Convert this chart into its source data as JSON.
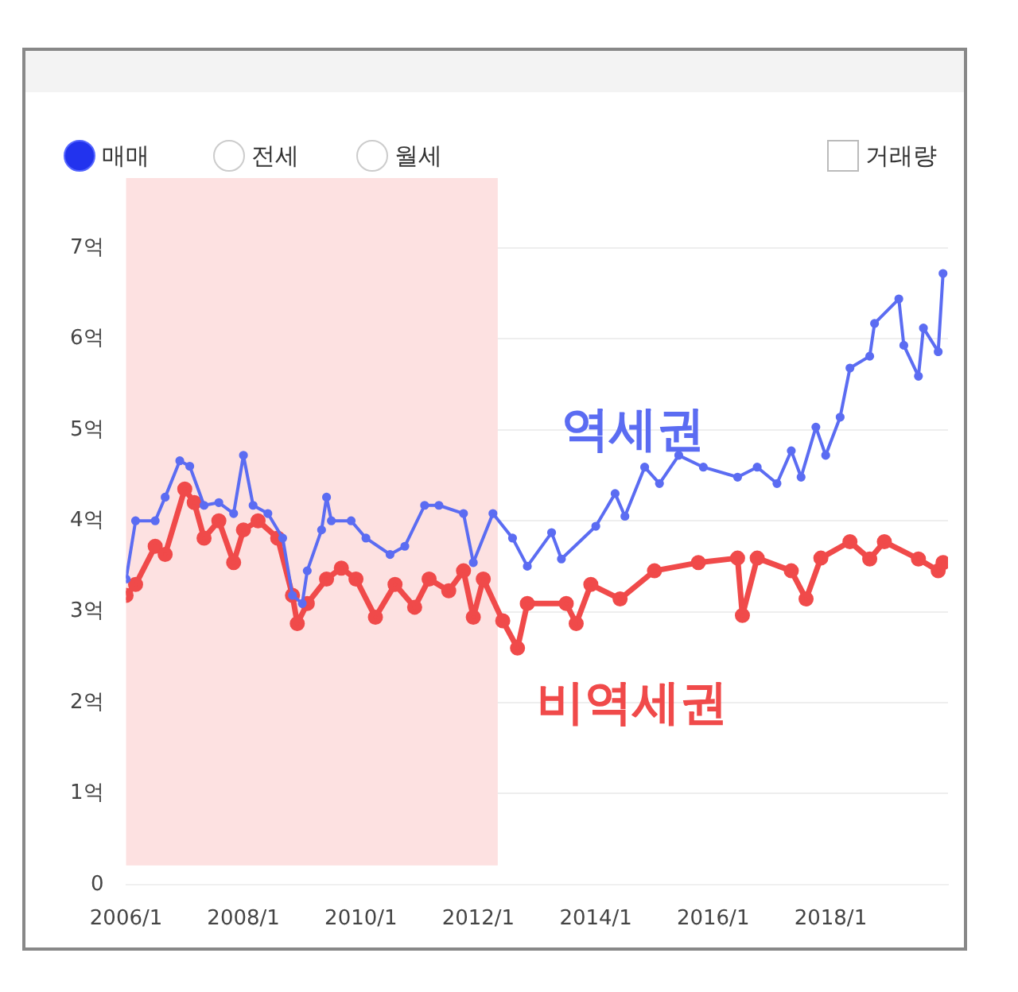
{
  "chart_data": {
    "type": "line",
    "annotations": [
      "매매",
      "전세",
      "월세",
      "거래량"
    ],
    "x": [
      "2006-01",
      "2006-03",
      "2006-07",
      "2006-09",
      "2006-12",
      "2007-02",
      "2007-05",
      "2007-08",
      "2007-11",
      "2008-01",
      "2008-03",
      "2008-06",
      "2008-09",
      "2008-11",
      "2009-01",
      "2009-02",
      "2009-05",
      "2009-06",
      "2009-07",
      "2009-11",
      "2010-02",
      "2010-07",
      "2010-10",
      "2011-02",
      "2011-05",
      "2011-10",
      "2011-12",
      "2012-04",
      "2012-08",
      "2012-11",
      "2013-04",
      "2013-06",
      "2014-01",
      "2014-05",
      "2014-07",
      "2014-11",
      "2015-02",
      "2015-06",
      "2015-11",
      "2016-06",
      "2016-10",
      "2017-02",
      "2017-05",
      "2017-07",
      "2017-10",
      "2017-12",
      "2018-03",
      "2018-05",
      "2018-09",
      "2018-10",
      "2019-03",
      "2019-04",
      "2019-07",
      "2019-08",
      "2019-11",
      "2019-12"
    ],
    "series": [
      {
        "name": "역세권",
        "color": "#5b6cf2",
        "values": [
          3.36,
          4.0,
          4.0,
          4.26,
          4.66,
          4.6,
          4.17,
          4.2,
          4.08,
          4.72,
          4.17,
          4.08,
          3.81,
          3.18,
          3.09,
          3.45,
          3.9,
          4.26,
          4.0,
          4.0,
          3.81,
          3.63,
          3.72,
          4.17,
          4.17,
          4.08,
          3.54,
          4.08,
          3.81,
          3.5,
          3.87,
          3.58,
          3.94,
          4.3,
          4.05,
          4.59,
          4.41,
          4.72,
          4.59,
          4.48,
          4.59,
          4.41,
          4.77,
          4.48,
          5.03,
          4.72,
          5.14,
          5.68,
          5.81,
          6.17,
          6.44,
          5.93,
          5.59,
          6.12,
          5.86,
          6.72
        ]
      },
      {
        "name": "비역세권",
        "color": "#f04a4a",
        "x": [
          "2006-01",
          "2006-03",
          "2006-07",
          "2006-09",
          "2007-01",
          "2007-03",
          "2007-05",
          "2007-08",
          "2007-11",
          "2008-01",
          "2008-04",
          "2008-08",
          "2008-11",
          "2008-12",
          "2009-02",
          "2009-06",
          "2009-09",
          "2009-12",
          "2010-04",
          "2010-08",
          "2010-12",
          "2011-03",
          "2011-07",
          "2011-10",
          "2011-12",
          "2012-02",
          "2012-06",
          "2012-09",
          "2012-11",
          "2013-07",
          "2013-09",
          "2013-12",
          "2014-06",
          "2015-01",
          "2015-10",
          "2016-06",
          "2016-07",
          "2016-10",
          "2017-05",
          "2017-08",
          "2017-11",
          "2018-05",
          "2018-09",
          "2018-12",
          "2019-07",
          "2019-11",
          "2019-12"
        ],
        "values": [
          3.18,
          3.3,
          3.72,
          3.63,
          4.35,
          4.2,
          3.81,
          4.0,
          3.54,
          3.9,
          4.0,
          3.81,
          3.18,
          2.87,
          3.09,
          3.36,
          3.48,
          3.36,
          2.94,
          3.3,
          3.05,
          3.36,
          3.23,
          3.45,
          2.94,
          3.36,
          2.9,
          2.6,
          3.09,
          3.09,
          2.87,
          3.3,
          3.14,
          3.45,
          3.54,
          3.59,
          2.96,
          3.59,
          3.45,
          3.14,
          3.59,
          3.77,
          3.58,
          3.77,
          3.58,
          3.45,
          3.54
        ]
      }
    ],
    "xlim": [
      "2006-01",
      "2020-01"
    ],
    "xticks": [
      {
        "value": "2006-01",
        "label": "2006/1"
      },
      {
        "value": "2008-01",
        "label": "2008/1"
      },
      {
        "value": "2010-01",
        "label": "2010/1"
      },
      {
        "value": "2012-01",
        "label": "2012/1"
      },
      {
        "value": "2014-01",
        "label": "2014/1"
      },
      {
        "value": "2016-01",
        "label": "2016/1"
      },
      {
        "value": "2018-01",
        "label": "2018/1"
      }
    ],
    "ylim": [
      0,
      7
    ],
    "yticks": [
      0,
      {
        "value": 1,
        "label": "1억"
      },
      {
        "value": 2,
        "label": "2억"
      },
      {
        "value": 3,
        "label": "3억"
      },
      {
        "value": 4,
        "label": "4억"
      },
      {
        "value": 5,
        "label": "5억"
      },
      {
        "value": 6,
        "label": "6억"
      },
      {
        "value": 7,
        "label": "7억"
      }
    ],
    "bands": [
      {
        "axis": "x",
        "from": "2006-01",
        "to": "2012-05",
        "color": "#fde1e1"
      }
    ],
    "grid": "y",
    "legend": false,
    "marker": "circle"
  }
}
